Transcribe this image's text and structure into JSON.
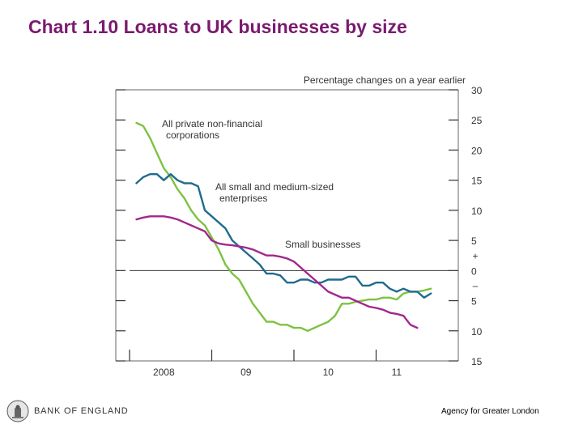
{
  "page_title": "Chart 1.10 Loans to UK businesses by size",
  "footer": {
    "org": "BANK OF ENGLAND",
    "agency": "Agency for Greater London"
  },
  "chart_data": {
    "type": "line",
    "title": "Chart 1.10 Loans to UK businesses by size",
    "ylabel": "Percentage changes on a year earlier",
    "xlabel": "",
    "ylim": [
      -15,
      30
    ],
    "xlim": [
      0,
      48
    ],
    "x_tick_labels": [
      {
        "label": "2008",
        "x": 5
      },
      {
        "label": "09",
        "x": 17
      },
      {
        "label": "10",
        "x": 29
      },
      {
        "label": "11",
        "x": 39
      }
    ],
    "x_major_ticks": [
      0,
      12,
      24,
      36
    ],
    "y_ticks": [
      30,
      25,
      20,
      15,
      10,
      5,
      0,
      -5,
      -10,
      -15
    ],
    "y_tick_labels": [
      "30",
      "25",
      "20",
      "15",
      "10",
      "5",
      "0",
      "5",
      "10",
      "15"
    ],
    "sign_labels": {
      "plus": "+",
      "minus": "–"
    },
    "zero_line": true,
    "series": [
      {
        "name": "All private non-financial corporations",
        "label_lines": [
          "All private non-financial",
          "corporations"
        ],
        "color": "#7dc242",
        "x": [
          1,
          2,
          3,
          4,
          5,
          6,
          7,
          8,
          9,
          10,
          11,
          12,
          13,
          14,
          15,
          16,
          17,
          18,
          19,
          20,
          21,
          22,
          23,
          24,
          25,
          26,
          27,
          28,
          29,
          30,
          31,
          32,
          33,
          34,
          35,
          36,
          37,
          38,
          39,
          40,
          41,
          42,
          43,
          44
        ],
        "values": [
          24.5,
          24,
          22,
          19.5,
          17,
          15.5,
          13.5,
          12,
          10,
          8.5,
          7.5,
          5.5,
          3.5,
          1,
          -0.5,
          -1.5,
          -3.5,
          -5.5,
          -7,
          -8.5,
          -8.5,
          -9,
          -9,
          -9.5,
          -9.5,
          -10,
          -9.5,
          -9,
          -8.5,
          -7.5,
          -5.5,
          -5.5,
          -5.2,
          -5,
          -4.8,
          -4.8,
          -4.5,
          -4.5,
          -4.8,
          -3.8,
          -3.5,
          -3.5,
          -3.3,
          -3
        ]
      },
      {
        "name": "All small and medium-sized enterprises",
        "label_lines": [
          "All small and medium-sized",
          "enterprises"
        ],
        "color": "#1f6b8e",
        "x": [
          1,
          2,
          3,
          4,
          5,
          6,
          7,
          8,
          9,
          10,
          11,
          12,
          13,
          14,
          15,
          16,
          17,
          18,
          19,
          20,
          21,
          22,
          23,
          24,
          25,
          26,
          27,
          28,
          29,
          30,
          31,
          32,
          33,
          34,
          35,
          36,
          37,
          38,
          39,
          40,
          41,
          42,
          43,
          44
        ],
        "values": [
          14.5,
          15.5,
          16,
          16,
          15,
          16,
          15,
          14.5,
          14.5,
          14,
          10,
          9,
          8,
          7,
          5,
          4,
          3,
          2,
          1,
          -0.5,
          -0.5,
          -0.8,
          -2,
          -2,
          -1.5,
          -1.5,
          -2,
          -2,
          -1.5,
          -1.5,
          -1.5,
          -1,
          -1,
          -2.5,
          -2.5,
          -2,
          -2,
          -3,
          -3.5,
          -3,
          -3.5,
          -3.5,
          -4.5,
          -3.8
        ]
      },
      {
        "name": "Small businesses",
        "label_lines": [
          "Small businesses"
        ],
        "color": "#a3268e",
        "x": [
          1,
          2,
          3,
          4,
          5,
          6,
          7,
          8,
          9,
          10,
          11,
          12,
          13,
          14,
          15,
          16,
          17,
          18,
          19,
          20,
          21,
          22,
          23,
          24,
          25,
          26,
          27,
          28,
          29,
          30,
          31,
          32,
          33,
          34,
          35,
          36,
          37,
          38,
          39,
          40,
          41,
          42
        ],
        "values": [
          8.5,
          8.8,
          9,
          9,
          9,
          8.8,
          8.5,
          8,
          7.5,
          7,
          6.5,
          5,
          4.5,
          4.3,
          4.2,
          4,
          3.8,
          3.5,
          3,
          2.5,
          2.5,
          2.3,
          2,
          1.5,
          0.5,
          -0.5,
          -1.5,
          -2.5,
          -3.5,
          -4,
          -4.5,
          -4.5,
          -5,
          -5.5,
          -6,
          -6.2,
          -6.5,
          -7,
          -7.2,
          -7.5,
          -9,
          -9.5
        ]
      }
    ]
  }
}
